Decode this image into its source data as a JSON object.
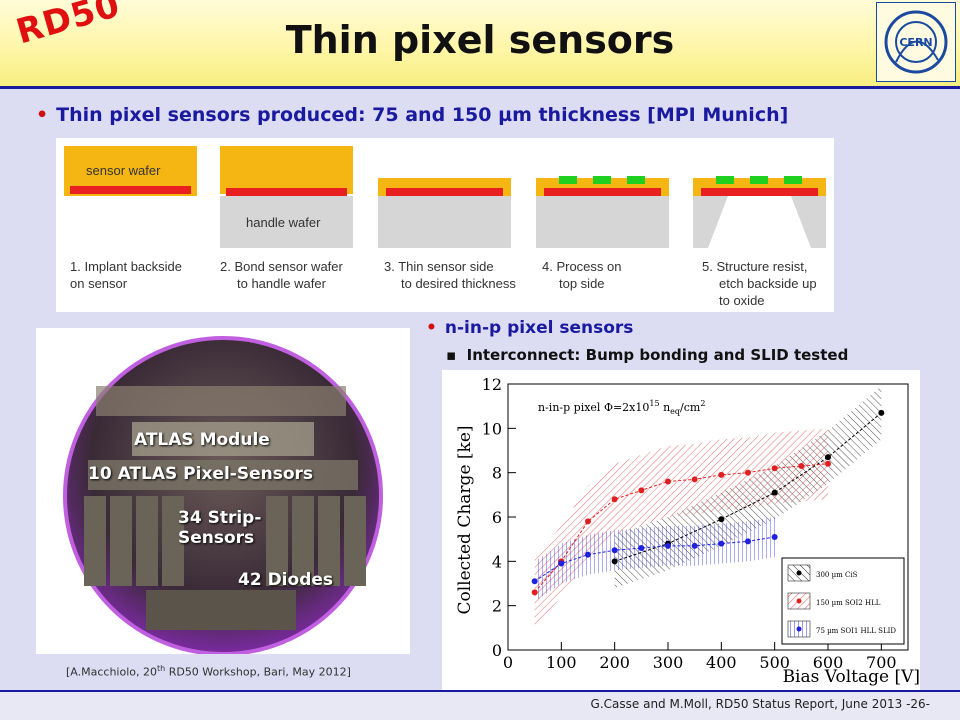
{
  "header": {
    "logo": "RD50",
    "title": "Thin pixel sensors",
    "cern_logo": "CERN"
  },
  "bullet1": {
    "pre": "Thin pixel sensors produced: 75 and 150 ",
    "mu": "µ",
    "post": "m thickness    [MPI Munich]"
  },
  "process": {
    "labels": {
      "sensor_wafer": "sensor wafer",
      "handle_wafer": "handle wafer"
    },
    "steps": [
      {
        "line1": "1. Implant backside",
        "line2": "on sensor"
      },
      {
        "line1": "2. Bond sensor wafer",
        "line2": "to handle wafer"
      },
      {
        "line1": "3. Thin sensor side",
        "line2": "to desired thickness"
      },
      {
        "line1": "4. Process on",
        "line2": "top side"
      },
      {
        "line1": "5. Structure resist,",
        "line2": "etch backside up",
        "line3": "to oxide"
      }
    ]
  },
  "wafer": {
    "labels": [
      "ATLAS Module",
      "10 ATLAS Pixel-Sensors",
      "34 Strip-",
      "Sensors",
      "42 Diodes"
    ],
    "citation_pre": "[A.Macchiolo, 20",
    "citation_sup": "th",
    "citation_post": " RD50 Workshop, Bari, May 2012]"
  },
  "bullet2": {
    "text": "n-in-p pixel sensors",
    "sub_marker": "▪",
    "sub": "Interconnect: Bump bonding and SLID tested"
  },
  "chart_data": {
    "type": "line",
    "annotation": "n-in-p pixel Φ=2x10¹⁵ n_eq/cm²",
    "annotation_parts": {
      "pre": "n-in-p pixel Φ=2x10",
      "sup": "15",
      "mid": " n",
      "sub": "eq",
      "post": "/cm",
      "sup2": "2"
    },
    "xlabel": "Bias Voltage [V]",
    "ylabel": "Collected Charge [ke]",
    "xlim": [
      0,
      750
    ],
    "ylim": [
      0,
      12
    ],
    "xticks": [
      "0",
      "100",
      "200",
      "300",
      "400",
      "500",
      "600",
      "700"
    ],
    "yticks": [
      "0",
      "2",
      "4",
      "6",
      "8",
      "10",
      "12"
    ],
    "legend_position": "bottom-right",
    "series": [
      {
        "name": "300 µm CiS",
        "color": "#000000",
        "x": [
          200,
          300,
          400,
          500,
          600,
          700
        ],
        "y": [
          4.0,
          4.8,
          5.9,
          7.1,
          8.7,
          10.7
        ]
      },
      {
        "name": "150 µm SOI2 HLL",
        "color": "#e02020",
        "x": [
          50,
          100,
          150,
          200,
          250,
          300,
          350,
          400,
          450,
          500,
          550,
          600
        ],
        "y": [
          2.6,
          4.0,
          5.8,
          6.8,
          7.2,
          7.6,
          7.7,
          7.9,
          8.0,
          8.2,
          8.3,
          8.4
        ]
      },
      {
        "name": "75 µm SOI1 HLL SLID",
        "color": "#2020e0",
        "x": [
          50,
          100,
          150,
          200,
          250,
          300,
          350,
          400,
          450,
          500
        ],
        "y": [
          3.1,
          3.9,
          4.3,
          4.5,
          4.6,
          4.7,
          4.7,
          4.8,
          4.9,
          5.1
        ]
      }
    ]
  },
  "footer": {
    "text": "G.Casse and M.Moll, RD50 Status Report, June 2013 -26-"
  }
}
